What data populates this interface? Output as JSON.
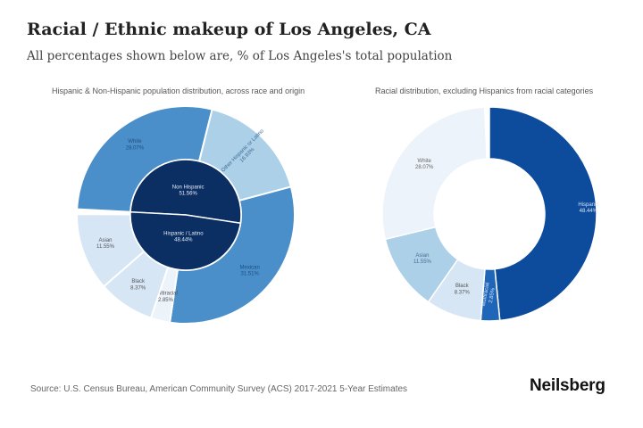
{
  "title": "Racial / Ethnic makeup of Los Angeles, CA",
  "subtitle": "All percentages shown below are, % of Los Angeles's total population",
  "source": "Source: U.S. Census Bureau, American Community Survey (ACS) 2017-2021 5-Year Estimates",
  "brand": "Neilsberg",
  "colors": {
    "dark_navy": "#0b2e63",
    "royal_blue": "#0d4c9c",
    "mid_blue": "#4a8fc9",
    "light_blue": "#acd0e8",
    "pale_blue": "#d6e6f4",
    "very_pale": "#edf3fa"
  },
  "chart_data": [
    {
      "type": "pie",
      "subtype": "sunburst",
      "title": "Hispanic & Non-Hispanic population distribution, across race and origin",
      "inner": [
        {
          "label": "Non Hispanic",
          "value": 51.56,
          "display": "51.56%"
        },
        {
          "label": "Hispanic / Latino",
          "value": 48.44,
          "display": "48.44%"
        }
      ],
      "outer": [
        {
          "label": "White",
          "value": 28.07,
          "display": "28.07%",
          "parent": "Non Hispanic"
        },
        {
          "label": "Other Hispanic or Latino",
          "value": 16.93,
          "display": "16.93%",
          "parent": "Hispanic / Latino"
        },
        {
          "label": "Mexican",
          "value": 31.51,
          "display": "31.51%",
          "parent": "Hispanic / Latino"
        },
        {
          "label": "Multiracial",
          "value": 2.85,
          "display": "2.85%",
          "parent": "Non Hispanic"
        },
        {
          "label": "Black",
          "value": 8.37,
          "display": "8.37%",
          "parent": "Non Hispanic"
        },
        {
          "label": "Asian",
          "value": 11.55,
          "display": "11.55%",
          "parent": "Non Hispanic"
        }
      ]
    },
    {
      "type": "pie",
      "subtype": "donut",
      "title": "Racial distribution, excluding Hispanics from racial categories",
      "slices": [
        {
          "label": "Hispanic",
          "value": 48.44,
          "display": "48.44%"
        },
        {
          "label": "Multiracial",
          "value": 2.85,
          "display": "2.85%"
        },
        {
          "label": "Black",
          "value": 8.37,
          "display": "8.37%"
        },
        {
          "label": "Asian",
          "value": 11.55,
          "display": "11.55%"
        },
        {
          "label": "White",
          "value": 28.07,
          "display": "28.07%"
        }
      ]
    }
  ]
}
